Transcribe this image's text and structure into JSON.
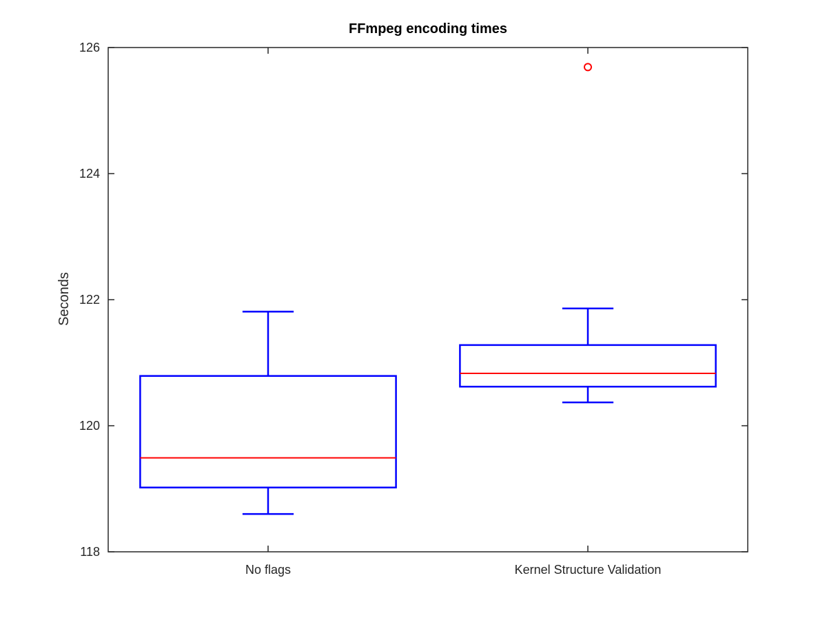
{
  "chart_data": {
    "type": "boxplot",
    "title": "FFmpeg encoding times",
    "xlabel": "",
    "ylabel": "Seconds",
    "ylim": [
      118,
      126
    ],
    "yticks": [
      118,
      120,
      122,
      124,
      126
    ],
    "ytick_labels": [
      "118",
      "120",
      "122",
      "124",
      "126"
    ],
    "grid": false,
    "categories": [
      "No flags",
      "Kernel Structure Validation"
    ],
    "boxes": [
      {
        "category": "No flags",
        "whisker_low": 118.6,
        "q1": 119.02,
        "median": 119.49,
        "q3": 120.79,
        "whisker_high": 121.81,
        "outliers": []
      },
      {
        "category": "Kernel Structure Validation",
        "whisker_low": 120.37,
        "q1": 120.62,
        "median": 120.83,
        "q3": 121.28,
        "whisker_high": 121.86,
        "outliers": [
          125.69
        ]
      }
    ],
    "colors": {
      "box": "#0000ff",
      "median": "#ff0000",
      "outlier": "#ff0000",
      "axis": "#262626"
    }
  }
}
